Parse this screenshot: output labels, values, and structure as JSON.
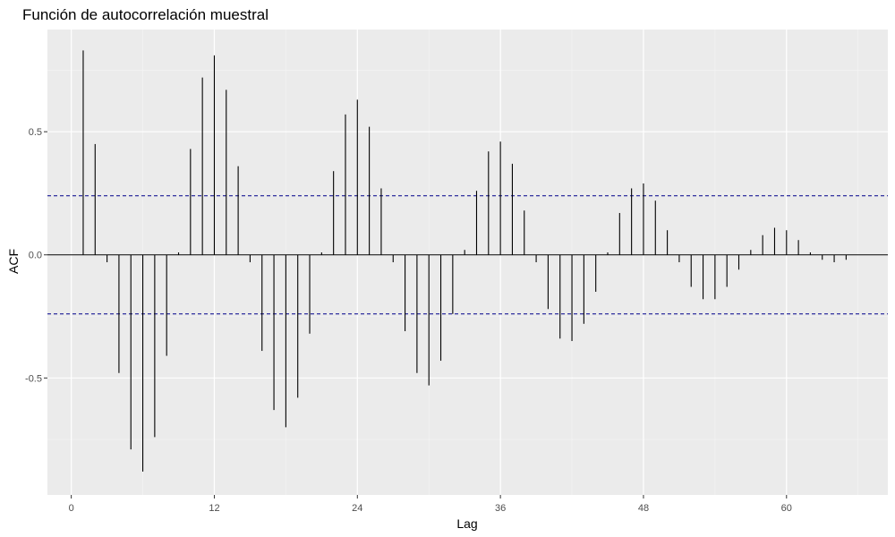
{
  "chart_data": {
    "type": "bar",
    "subtype": "acf-lollipop",
    "title": "Función de autocorrelación muestral",
    "xlabel": "Lag",
    "ylabel": "ACF",
    "xlim": [
      -2,
      68.5
    ],
    "ylim": [
      -0.975,
      0.915
    ],
    "x_ticks": [
      0,
      12,
      24,
      36,
      48,
      60
    ],
    "x_tick_labels": [
      "0",
      "12",
      "24",
      "36",
      "48",
      "60"
    ],
    "y_ticks": [
      -0.5,
      0.0,
      0.5
    ],
    "y_tick_labels": [
      "-0.5",
      "0.0",
      "0.5"
    ],
    "x_minor_ticks": [
      6,
      18,
      30,
      42,
      54,
      66
    ],
    "y_minor_ticks": [
      -0.75,
      -0.25,
      0.25,
      0.75
    ],
    "grid": true,
    "legend": "none",
    "confidence_bound": 0.24,
    "lags": [
      1,
      2,
      3,
      4,
      5,
      6,
      7,
      8,
      9,
      10,
      11,
      12,
      13,
      14,
      15,
      16,
      17,
      18,
      19,
      20,
      21,
      22,
      23,
      24,
      25,
      26,
      27,
      28,
      29,
      30,
      31,
      32,
      33,
      34,
      35,
      36,
      37,
      38,
      39,
      40,
      41,
      42,
      43,
      44,
      45,
      46,
      47,
      48,
      49,
      50,
      51,
      52,
      53,
      54,
      55,
      56,
      57,
      58,
      59,
      60,
      61,
      62,
      63,
      64,
      65
    ],
    "values": [
      0.83,
      0.45,
      -0.03,
      -0.48,
      -0.79,
      -0.88,
      -0.74,
      -0.41,
      0.01,
      0.43,
      0.72,
      0.81,
      0.67,
      0.36,
      -0.03,
      -0.39,
      -0.63,
      -0.7,
      -0.58,
      -0.32,
      0.01,
      0.34,
      0.57,
      0.63,
      0.52,
      0.27,
      -0.03,
      -0.31,
      -0.48,
      -0.53,
      -0.43,
      -0.24,
      0.02,
      0.26,
      0.42,
      0.46,
      0.37,
      0.18,
      -0.03,
      -0.22,
      -0.34,
      -0.35,
      -0.28,
      -0.15,
      0.01,
      0.17,
      0.27,
      0.29,
      0.22,
      0.1,
      -0.03,
      -0.13,
      -0.18,
      -0.18,
      -0.13,
      -0.06,
      0.02,
      0.08,
      0.11,
      0.1,
      0.06,
      0.01,
      -0.02,
      -0.03,
      -0.02
    ],
    "colors": {
      "panel": "#ebebeb",
      "grid_major": "#ffffff",
      "grid_minor": "#f5f5f5",
      "bars": "#000000",
      "zero_line": "#000000",
      "bound_line": "#00008b",
      "tick": "#333333"
    }
  }
}
